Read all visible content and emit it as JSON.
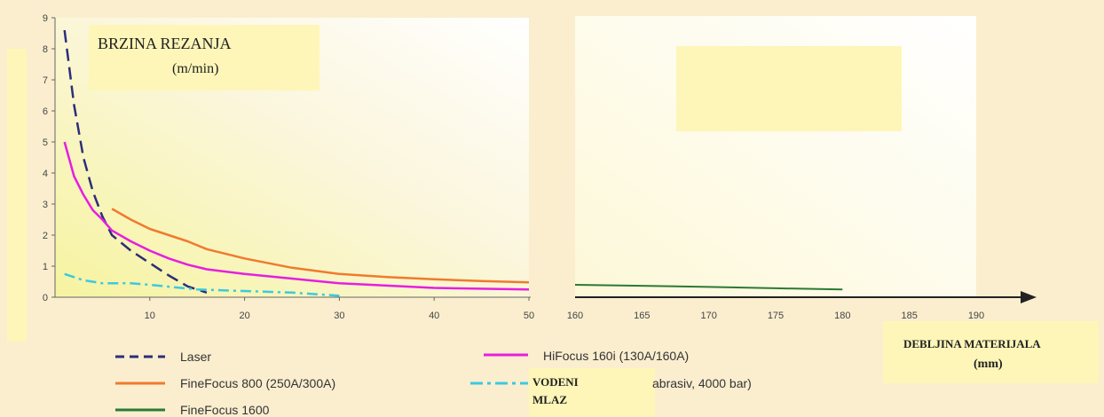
{
  "chart_data": {
    "type": "line",
    "title": "BRZINA REZANJA",
    "title_unit": "(m/min)",
    "xlabel": "DEBLJINA MATERIJALA",
    "xlabel_unit": "(mm)",
    "left_panel": {
      "xlim": [
        0,
        50
      ],
      "ylim": [
        0,
        9
      ],
      "x_ticks": [
        "10",
        "20",
        "30",
        "40",
        "50"
      ],
      "y_ticks": [
        "0",
        "1",
        "2",
        "3",
        "4",
        "5",
        "6",
        "7",
        "8",
        "9"
      ]
    },
    "right_panel": {
      "xlim": [
        160,
        190
      ],
      "x_ticks": [
        "160",
        "165",
        "170",
        "175",
        "180",
        "185",
        "190"
      ]
    },
    "series": [
      {
        "name": "Laser",
        "color": "#2b2f7a",
        "style": "dashed",
        "x": [
          1,
          2,
          3,
          4,
          5,
          6,
          8,
          10,
          12,
          14,
          16
        ],
        "y": [
          8.6,
          6.2,
          4.5,
          3.4,
          2.6,
          2.0,
          1.5,
          1.1,
          0.7,
          0.35,
          0.15
        ]
      },
      {
        "name": "HiFocus 160i (130A/160A)",
        "color": "#e61ee0",
        "style": "solid",
        "x": [
          1,
          2,
          3,
          4,
          5,
          6,
          8,
          10,
          12,
          14,
          16,
          20,
          25,
          30,
          40,
          50
        ],
        "y": [
          5.0,
          3.9,
          3.3,
          2.8,
          2.5,
          2.15,
          1.8,
          1.5,
          1.25,
          1.05,
          0.9,
          0.75,
          0.6,
          0.45,
          0.3,
          0.25
        ]
      },
      {
        "name": "FineFocus 800 (250A/300A)",
        "color": "#f07a2e",
        "style": "solid",
        "x": [
          6,
          8,
          10,
          12,
          14,
          16,
          20,
          25,
          30,
          35,
          40,
          45,
          50
        ],
        "y": [
          2.85,
          2.5,
          2.2,
          2.0,
          1.8,
          1.55,
          1.25,
          0.95,
          0.75,
          0.65,
          0.58,
          0.52,
          0.48
        ]
      },
      {
        "name": "FineFocus 1600",
        "color": "#2a7a34",
        "style": "solid",
        "x": [
          160,
          165,
          170,
          175,
          180
        ],
        "y": [
          0.4,
          0.37,
          0.33,
          0.29,
          0.25
        ]
      },
      {
        "name": "VODENI MLAZ",
        "legend_suffix": "abrasiv, 4000 bar)",
        "color": "#3cc9e0",
        "style": "dashdot",
        "x": [
          1,
          3,
          5,
          8,
          10,
          15,
          20,
          25,
          30
        ],
        "y": [
          0.75,
          0.55,
          0.45,
          0.45,
          0.4,
          0.25,
          0.2,
          0.15,
          0.05
        ]
      }
    ],
    "grid": false,
    "legend_position": "bottom"
  }
}
